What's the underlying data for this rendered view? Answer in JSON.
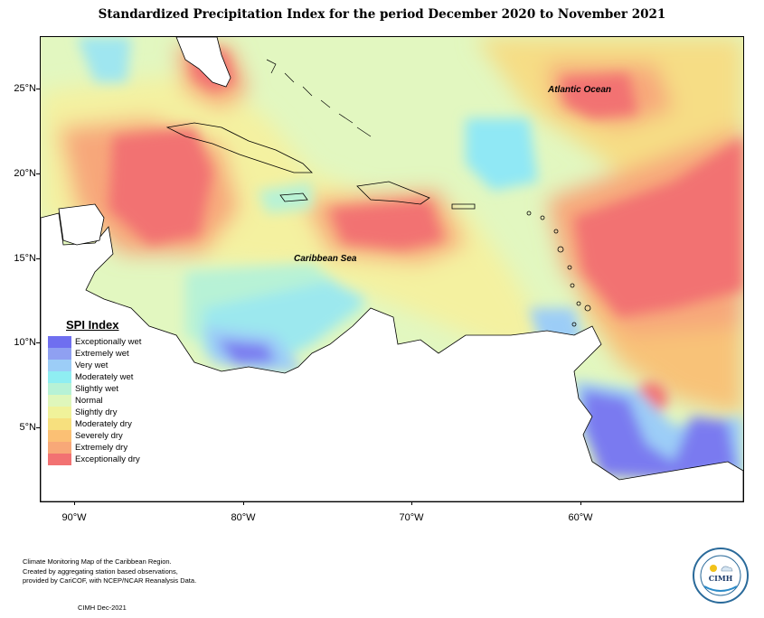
{
  "title": "Standardized Precipitation Index for the period December 2020 to November 2021",
  "map": {
    "labels": {
      "atlantic": "Atlantic Ocean",
      "caribbean": "Caribbean Sea"
    },
    "lat_ticks": [
      "25°N",
      "20°N",
      "15°N",
      "10°N",
      "5°N"
    ],
    "lon_ticks": [
      "90°W",
      "80°W",
      "70°W",
      "60°W"
    ],
    "extent": {
      "lon": [
        -92,
        -50
      ],
      "lat": [
        1,
        28
      ]
    }
  },
  "legend": {
    "title": "SPI Index",
    "items": [
      {
        "label": "Exceptionally wet",
        "color": "#6f6ff0"
      },
      {
        "label": "Extremely wet",
        "color": "#8fa0f2"
      },
      {
        "label": "Very wet",
        "color": "#9ccdf7"
      },
      {
        "label": "Moderately wet",
        "color": "#8feef2"
      },
      {
        "label": "Slightly wet",
        "color": "#b7f2d6"
      },
      {
        "label": "Normal",
        "color": "#dff7bb"
      },
      {
        "label": "Slightly dry",
        "color": "#f0f29a"
      },
      {
        "label": "Moderately dry",
        "color": "#f7e07e"
      },
      {
        "label": "Severely dry",
        "color": "#fbc074"
      },
      {
        "label": "Extremely dry",
        "color": "#f8a878"
      },
      {
        "label": "Exceptionally dry",
        "color": "#f27272"
      }
    ]
  },
  "footer": {
    "lines": [
      "Climate Monitoring Map of the Caribbean Region.",
      "Created by aggregating station based observations,",
      "provided by CariCOF, with NCEP/NCAR Reanalysis Data."
    ],
    "date": "CIMH Dec-2021"
  },
  "logo": {
    "text": "CIMH"
  }
}
